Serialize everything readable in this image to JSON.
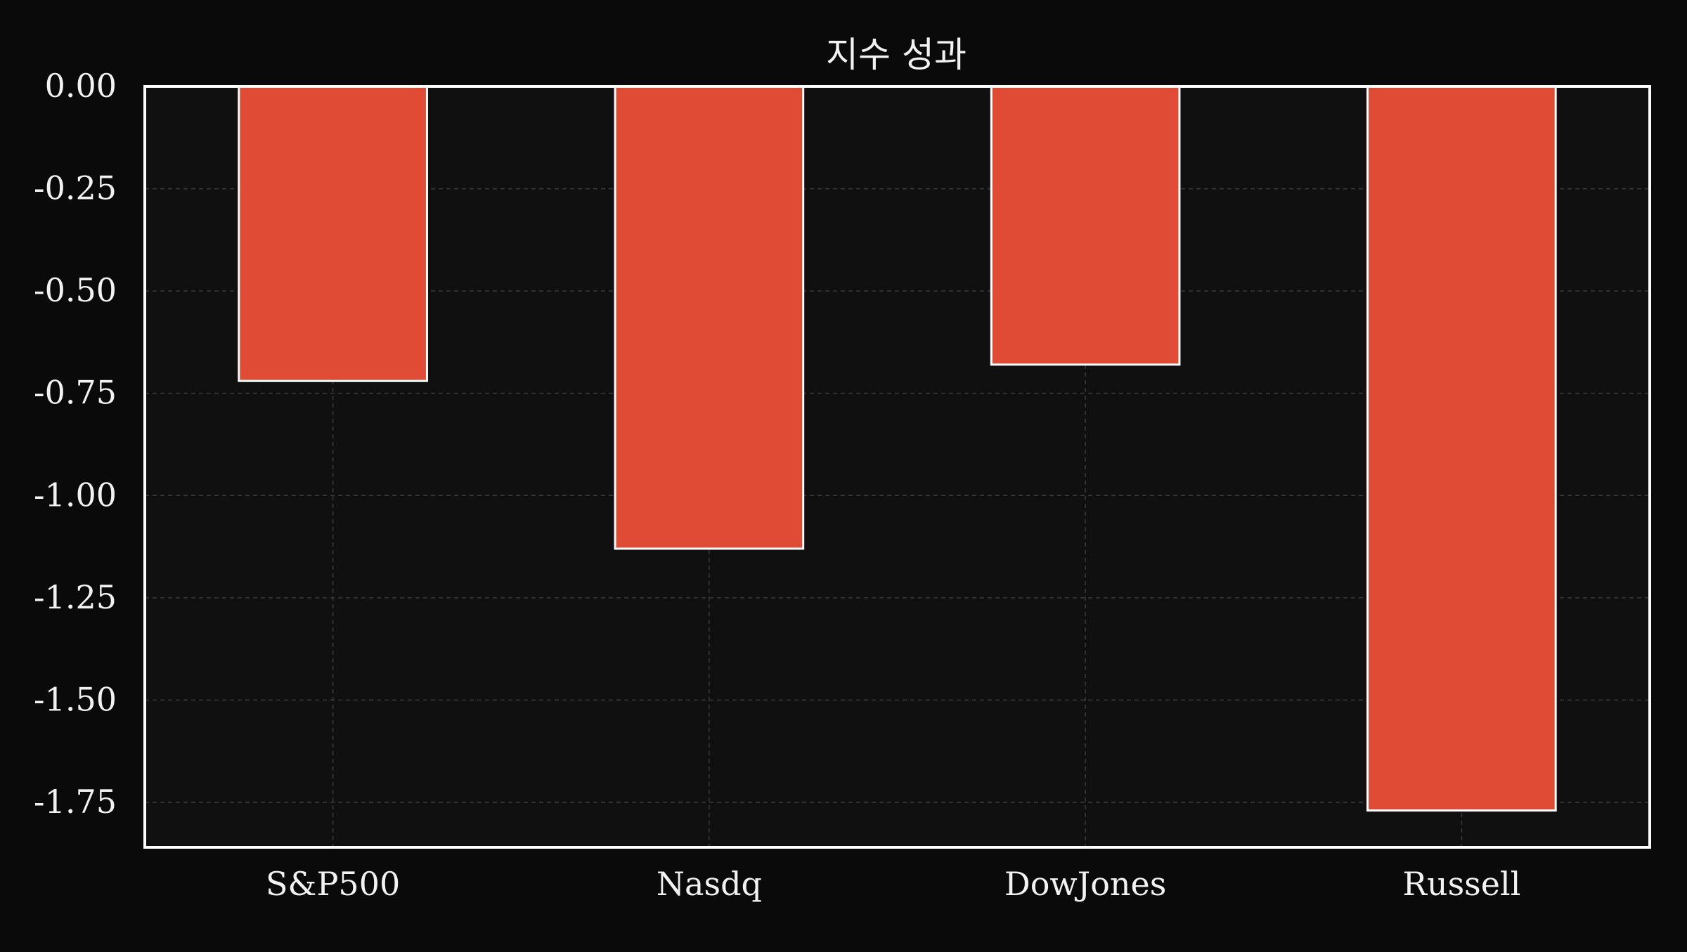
{
  "chart_data": {
    "type": "bar",
    "title": "지수 성과",
    "xlabel": "",
    "ylabel": "",
    "categories": [
      "S&P500",
      "Nasdq",
      "DowJones",
      "Russell"
    ],
    "values": [
      -0.72,
      -1.13,
      -0.68,
      -1.77
    ],
    "ylim": [
      -1.86,
      0.0
    ],
    "yticks": [
      0.0,
      -0.25,
      -0.5,
      -0.75,
      -1.0,
      -1.25,
      -1.5,
      -1.75
    ],
    "ytick_labels": [
      "0.00",
      "-0.25",
      "-0.50",
      "-0.75",
      "-1.00",
      "-1.25",
      "-1.50",
      "-1.75"
    ],
    "grid": true,
    "legend": "none",
    "colors": {
      "page_background": "#0a0a0a",
      "plot_background": "#101010",
      "bar_fill": "#e04b35",
      "bar_edge": "#ffffff",
      "axis": "#ffffff",
      "grid": "#3a3a3a",
      "text": "#f2f2f2"
    }
  }
}
